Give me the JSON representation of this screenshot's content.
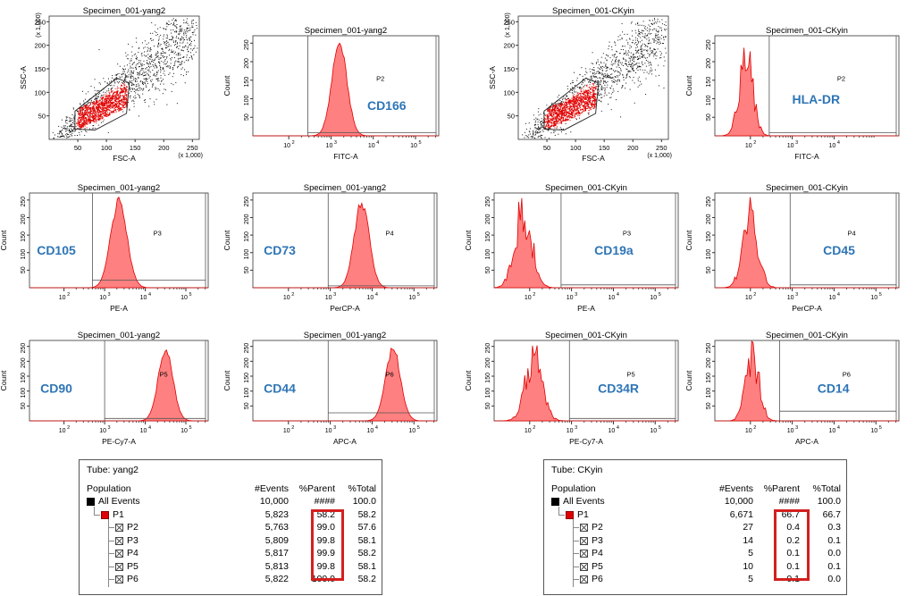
{
  "colors": {
    "marker_label": "#2e75b6",
    "event_fill": "#ff8080",
    "event_stroke": "#e00000",
    "gate": "#555555",
    "highlight": "#d41f1f"
  },
  "plots": [
    {
      "type": "scatter",
      "title": "Specimen_001-yang2",
      "xlabel": "FSC-A",
      "ylabel": "SSC-A",
      "x_multiplier": "(x 1,000)",
      "y_multiplier": "(x 1,000)",
      "xlim": [
        0,
        262
      ],
      "ylim": [
        0,
        262
      ],
      "xticks": [
        "50",
        "100",
        "150",
        "200",
        "250"
      ],
      "yticks": [
        "50",
        "100",
        "150",
        "200",
        "250"
      ],
      "gate": "P1"
    },
    {
      "type": "histogram",
      "title": "Specimen_001-yang2",
      "xlabel": "FITC-A",
      "ylabel": "Count",
      "yticks": [
        "50",
        "100",
        "150",
        "200",
        "250"
      ],
      "ymax": 270,
      "xticks": [
        "10",
        "10",
        "10",
        "10"
      ],
      "xexp": [
        "2",
        "3",
        "4",
        "5"
      ],
      "gate": "P2",
      "gate_from": 2.45,
      "gate_height": 0.03,
      "marker": "CD166",
      "peak_log": 3.2,
      "peak_height": 0.92,
      "width": 0.18,
      "spiky": false
    },
    {
      "type": "scatter",
      "title": "Specimen_001-CKyin",
      "xlabel": "FSC-A",
      "ylabel": "SSC-A",
      "x_multiplier": "(x 1,000)",
      "y_multiplier": "(x 1,000)",
      "xlim": [
        0,
        262
      ],
      "ylim": [
        0,
        262
      ],
      "xticks": [
        "50",
        "100",
        "150",
        "200",
        "250"
      ],
      "yticks": [
        "50",
        "100",
        "150",
        "200",
        "250"
      ],
      "gate": "P1"
    },
    {
      "type": "histogram",
      "title": "Specimen_001-CKyin",
      "xlabel": "FITC-A",
      "ylabel": "Count",
      "yticks": [
        "50",
        "100",
        "150",
        "200",
        "250"
      ],
      "ymax": 270,
      "xticks": [
        "10",
        "10",
        "10"
      ],
      "xexp": [
        "2",
        "3",
        "4"
      ],
      "gate": "P2",
      "gate_from": 2.45,
      "gate_height": 0.03,
      "marker": "HLA-DR",
      "peak_log": 1.9,
      "peak_height": 0.95,
      "width": 0.16,
      "spiky": true
    },
    {
      "type": "histogram",
      "title": "Specimen_001-yang2",
      "xlabel": "PE-A",
      "ylabel": "Count",
      "yticks": [
        "50",
        "100",
        "150",
        "200",
        "250"
      ],
      "ymax": 270,
      "xticks": [
        "10",
        "10",
        "10",
        "10"
      ],
      "xexp": [
        "2",
        "3",
        "4",
        "5"
      ],
      "gate": "P3",
      "gate_from": 2.7,
      "gate_height": 0.08,
      "marker": "CD105",
      "peak_log": 3.35,
      "peak_height": 0.92,
      "width": 0.2,
      "spiky": false
    },
    {
      "type": "histogram",
      "title": "Specimen_001-yang2",
      "xlabel": "PerCP-A",
      "ylabel": "Count",
      "yticks": [
        "50",
        "100",
        "150",
        "200",
        "250"
      ],
      "ymax": 270,
      "xticks": [
        "10",
        "10",
        "10",
        "10"
      ],
      "xexp": [
        "2",
        "3",
        "4",
        "5"
      ],
      "gate": "P4",
      "gate_from": 2.95,
      "gate_height": 0.02,
      "marker": "CD73",
      "peak_log": 3.75,
      "peak_height": 0.9,
      "width": 0.18,
      "spiky": false
    },
    {
      "type": "histogram",
      "title": "Specimen_001-CKyin",
      "xlabel": "PE-A",
      "ylabel": "Count",
      "yticks": [
        "50",
        "100",
        "150",
        "200",
        "250"
      ],
      "ymax": 270,
      "xticks": [
        "10",
        "10",
        "10",
        "10"
      ],
      "xexp": [
        "2",
        "3",
        "4",
        "5"
      ],
      "gate": "P3",
      "gate_from": 2.75,
      "gate_height": 0.03,
      "marker": "CD19a",
      "peak_log": 1.85,
      "peak_height": 0.94,
      "width": 0.2,
      "spiky": true
    },
    {
      "type": "histogram",
      "title": "Specimen_001-CKyin",
      "xlabel": "PerCP-A",
      "ylabel": "Count",
      "yticks": [
        "50",
        "100",
        "150",
        "200",
        "250"
      ],
      "ymax": 270,
      "xticks": [
        "10",
        "10",
        "10",
        "10"
      ],
      "xexp": [
        "2",
        "3",
        "4",
        "5"
      ],
      "gate": "P4",
      "gate_from": 2.95,
      "gate_height": 0.03,
      "marker": "CD45",
      "peak_log": 2.0,
      "peak_height": 0.95,
      "width": 0.18,
      "spiky": true
    },
    {
      "type": "histogram",
      "title": "Specimen_001-yang2",
      "xlabel": "PE-Cy7-A",
      "ylabel": "Count",
      "yticks": [
        "50",
        "100",
        "150",
        "200",
        "250"
      ],
      "ymax": 270,
      "xticks": [
        "10",
        "10",
        "10",
        "10"
      ],
      "xexp": [
        "2",
        "3",
        "4",
        "5"
      ],
      "gate": "P5",
      "gate_from": 3.0,
      "gate_height": 0.03,
      "marker": "CD90",
      "peak_log": 4.5,
      "peak_height": 0.9,
      "width": 0.18,
      "spiky": false
    },
    {
      "type": "histogram",
      "title": "Specimen_001-yang2",
      "xlabel": "APC-A",
      "ylabel": "Count",
      "yticks": [
        "50",
        "100",
        "150",
        "200",
        "250"
      ],
      "ymax": 270,
      "xticks": [
        "10",
        "10",
        "10",
        "10"
      ],
      "xexp": [
        "2",
        "3",
        "4",
        "5"
      ],
      "gate": "P6",
      "gate_from": 2.95,
      "gate_height": 0.1,
      "marker": "CD44",
      "peak_log": 4.5,
      "peak_height": 0.9,
      "width": 0.18,
      "spiky": false
    },
    {
      "type": "histogram",
      "title": "Specimen_001-CKyin",
      "xlabel": "PE-Cy7-A",
      "ylabel": "Count",
      "yticks": [
        "50",
        "100",
        "150",
        "200",
        "250"
      ],
      "ymax": 270,
      "xticks": [
        "10",
        "10",
        "10",
        "10"
      ],
      "xexp": [
        "2",
        "3",
        "4",
        "5"
      ],
      "gate": "P5",
      "gate_from": 2.95,
      "gate_height": 0.03,
      "marker": "CD34R",
      "peak_log": 2.1,
      "peak_height": 0.9,
      "width": 0.2,
      "spiky": true
    },
    {
      "type": "histogram",
      "title": "Specimen_001-CKyin",
      "xlabel": "APC-A",
      "ylabel": "Count",
      "yticks": [
        "50",
        "100",
        "150",
        "200",
        "250"
      ],
      "ymax": 270,
      "xticks": [
        "10",
        "10",
        "10",
        "10"
      ],
      "xexp": [
        "2",
        "3",
        "4",
        "5"
      ],
      "gate": "P6",
      "gate_from": 2.7,
      "gate_height": 0.12,
      "marker": "CD14",
      "peak_log": 2.05,
      "peak_height": 0.92,
      "width": 0.16,
      "spiky": true
    }
  ],
  "tables": [
    {
      "tube_label": "Tube:",
      "tube": "yang2",
      "headers": {
        "population": "Population",
        "events": "#Events",
        "parent": "%Parent",
        "total": "%Total"
      },
      "rows": [
        {
          "name": "All Events",
          "events": "10,000",
          "parent": "####",
          "total": "100.0",
          "level": 0,
          "icon": "black"
        },
        {
          "name": "P1",
          "events": "5,823",
          "parent": "58.2",
          "total": "58.2",
          "level": 1,
          "icon": "red"
        },
        {
          "name": "P2",
          "events": "5,763",
          "parent": "99.0",
          "total": "57.6",
          "level": 2,
          "icon": "x"
        },
        {
          "name": "P3",
          "events": "5,809",
          "parent": "99.8",
          "total": "58.1",
          "level": 2,
          "icon": "x"
        },
        {
          "name": "P4",
          "events": "5,817",
          "parent": "99.9",
          "total": "58.2",
          "level": 2,
          "icon": "x"
        },
        {
          "name": "P5",
          "events": "5,813",
          "parent": "99.8",
          "total": "58.1",
          "level": 2,
          "icon": "x"
        },
        {
          "name": "P6",
          "events": "5,822",
          "parent": "100.0",
          "total": "58.2",
          "level": 2,
          "icon": "x"
        }
      ]
    },
    {
      "tube_label": "Tube:",
      "tube": "CKyin",
      "headers": {
        "population": "Population",
        "events": "#Events",
        "parent": "%Parent",
        "total": "%Total"
      },
      "rows": [
        {
          "name": "All Events",
          "events": "10,000",
          "parent": "####",
          "total": "100.0",
          "level": 0,
          "icon": "black"
        },
        {
          "name": "P1",
          "events": "6,671",
          "parent": "66.7",
          "total": "66.7",
          "level": 1,
          "icon": "red"
        },
        {
          "name": "P2",
          "events": "27",
          "parent": "0.4",
          "total": "0.3",
          "level": 2,
          "icon": "x"
        },
        {
          "name": "P3",
          "events": "14",
          "parent": "0.2",
          "total": "0.1",
          "level": 2,
          "icon": "x"
        },
        {
          "name": "P4",
          "events": "5",
          "parent": "0.1",
          "total": "0.0",
          "level": 2,
          "icon": "x"
        },
        {
          "name": "P5",
          "events": "10",
          "parent": "0.1",
          "total": "0.1",
          "level": 2,
          "icon": "x"
        },
        {
          "name": "P6",
          "events": "5",
          "parent": "0.1",
          "total": "0.0",
          "level": 2,
          "icon": "x"
        }
      ]
    }
  ],
  "chart_data": [
    {
      "type": "scatter",
      "title": "Specimen_001-yang2",
      "xlabel": "FSC-A",
      "ylabel": "SSC-A",
      "xlim": [
        0,
        262
      ],
      "ylim": [
        0,
        262
      ],
      "gate": "P1"
    },
    {
      "type": "area",
      "title": "Specimen_001-yang2",
      "xlabel": "FITC-A",
      "ylabel": "Count",
      "gate": "P2",
      "label": "CD166"
    },
    {
      "type": "scatter",
      "title": "Specimen_001-CKyin",
      "xlabel": "FSC-A",
      "ylabel": "SSC-A",
      "xlim": [
        0,
        262
      ],
      "ylim": [
        0,
        262
      ],
      "gate": "P1"
    },
    {
      "type": "area",
      "title": "Specimen_001-CKyin",
      "xlabel": "FITC-A",
      "ylabel": "Count",
      "gate": "P2",
      "label": "HLA-DR"
    },
    {
      "type": "area",
      "title": "Specimen_001-yang2",
      "xlabel": "PE-A",
      "ylabel": "Count",
      "gate": "P3",
      "label": "CD105"
    },
    {
      "type": "area",
      "title": "Specimen_001-yang2",
      "xlabel": "PerCP-A",
      "ylabel": "Count",
      "gate": "P4",
      "label": "CD73"
    },
    {
      "type": "area",
      "title": "Specimen_001-CKyin",
      "xlabel": "PE-A",
      "ylabel": "Count",
      "gate": "P3",
      "label": "CD19a"
    },
    {
      "type": "area",
      "title": "Specimen_001-CKyin",
      "xlabel": "PerCP-A",
      "ylabel": "Count",
      "gate": "P4",
      "label": "CD45"
    },
    {
      "type": "area",
      "title": "Specimen_001-yang2",
      "xlabel": "PE-Cy7-A",
      "ylabel": "Count",
      "gate": "P5",
      "label": "CD90"
    },
    {
      "type": "area",
      "title": "Specimen_001-yang2",
      "xlabel": "APC-A",
      "ylabel": "Count",
      "gate": "P6",
      "label": "CD44"
    },
    {
      "type": "area",
      "title": "Specimen_001-CKyin",
      "xlabel": "PE-Cy7-A",
      "ylabel": "Count",
      "gate": "P5",
      "label": "CD34R"
    },
    {
      "type": "area",
      "title": "Specimen_001-CKyin",
      "xlabel": "APC-A",
      "ylabel": "Count",
      "gate": "P6",
      "label": "CD14"
    }
  ]
}
